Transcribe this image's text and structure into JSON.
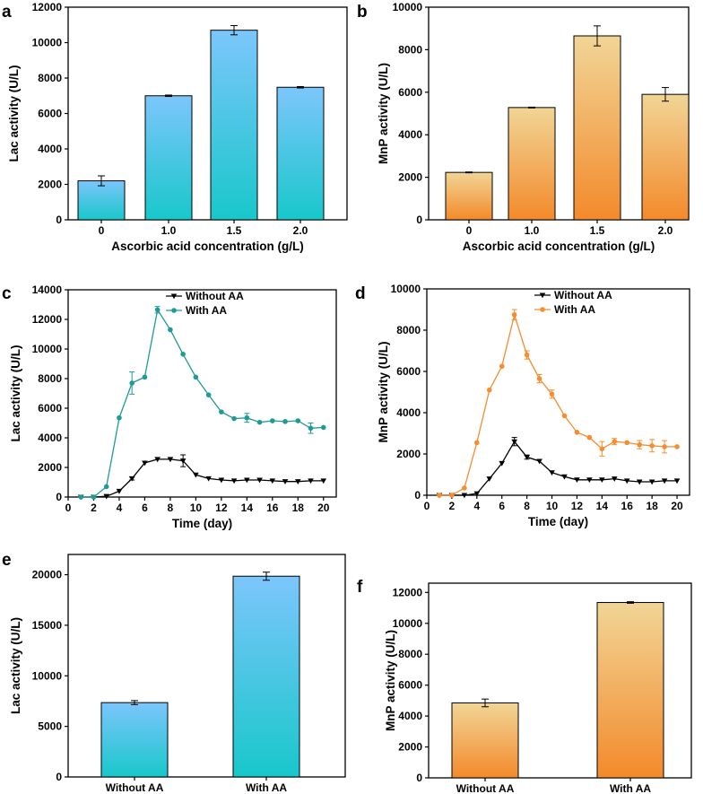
{
  "colors": {
    "blue_top": "#7cc6fb",
    "blue_bottom": "#18c7cb",
    "orange_top": "#f1d596",
    "orange_bottom": "#f38a2b",
    "teal_line": "#1f9a96",
    "orange_line": "#f68d2e",
    "black_line": "#000000"
  },
  "chart_data": [
    {
      "panel": "a",
      "type": "bar",
      "fill": "blue",
      "categories": [
        "0",
        "1.0",
        "1.5",
        "2.0"
      ],
      "values": [
        2200,
        7000,
        10700,
        7480
      ],
      "errors": [
        280,
        40,
        260,
        40
      ],
      "xlabel": "Ascorbic acid concentration (g/L)",
      "ylabel": "Lac activity (U/L)",
      "ylim": [
        0,
        12000
      ],
      "yticks": [
        0,
        2000,
        4000,
        6000,
        8000,
        10000,
        12000
      ]
    },
    {
      "panel": "b",
      "type": "bar",
      "fill": "orange",
      "categories": [
        "0",
        "1.0",
        "1.5",
        "2.0"
      ],
      "values": [
        2230,
        5280,
        8650,
        5900
      ],
      "errors": [
        20,
        20,
        470,
        320
      ],
      "xlabel": "Ascorbic acid concentration (g/L)",
      "ylabel": "MnP activity (U/L)",
      "ylim": [
        0,
        10000
      ],
      "yticks": [
        0,
        2000,
        4000,
        6000,
        8000,
        10000
      ]
    },
    {
      "panel": "c",
      "type": "line",
      "x": [
        1,
        2,
        3,
        4,
        5,
        6,
        7,
        8,
        9,
        10,
        11,
        12,
        13,
        14,
        15,
        16,
        17,
        18,
        19,
        20
      ],
      "series": [
        {
          "name": "Without AA",
          "color": "black",
          "marker": "triangle-down",
          "values": [
            0,
            0,
            50,
            400,
            1250,
            2300,
            2550,
            2550,
            2450,
            1500,
            1250,
            1150,
            1100,
            1150,
            1150,
            1100,
            1050,
            1050,
            1100,
            1100
          ],
          "errors": [
            0,
            0,
            0,
            0,
            100,
            0,
            0,
            0,
            400,
            0,
            0,
            0,
            0,
            0,
            0,
            0,
            0,
            0,
            0,
            0
          ]
        },
        {
          "name": "With AA",
          "color": "teal",
          "marker": "circle",
          "values": [
            0,
            0,
            700,
            5350,
            7700,
            8100,
            12650,
            11300,
            9650,
            8100,
            6900,
            5750,
            5300,
            5350,
            5050,
            5150,
            5100,
            5150,
            4650,
            4700
          ],
          "errors": [
            0,
            0,
            0,
            0,
            750,
            0,
            220,
            0,
            0,
            0,
            0,
            0,
            0,
            300,
            0,
            0,
            0,
            0,
            350,
            0
          ]
        }
      ],
      "xlabel": "Time (day)",
      "ylabel": "Lac activity (U/L)",
      "xlim": [
        0,
        21
      ],
      "xticks": [
        0,
        2,
        4,
        6,
        8,
        10,
        12,
        14,
        16,
        18,
        20
      ],
      "ylim": [
        0,
        14000
      ],
      "yticks": [
        0,
        2000,
        4000,
        6000,
        8000,
        10000,
        12000,
        14000
      ],
      "legend_position": "top-center"
    },
    {
      "panel": "d",
      "type": "line",
      "x": [
        1,
        2,
        3,
        4,
        5,
        6,
        7,
        8,
        9,
        10,
        11,
        12,
        13,
        14,
        15,
        16,
        17,
        18,
        19,
        20
      ],
      "series": [
        {
          "name": "Without AA",
          "color": "black",
          "marker": "triangle-down",
          "values": [
            0,
            0,
            0,
            80,
            800,
            1550,
            2600,
            1850,
            1650,
            1100,
            900,
            750,
            750,
            750,
            800,
            700,
            650,
            650,
            700,
            700
          ],
          "errors": [
            0,
            0,
            0,
            0,
            0,
            0,
            200,
            100,
            0,
            0,
            0,
            0,
            0,
            0,
            0,
            0,
            0,
            0,
            0,
            0
          ]
        },
        {
          "name": "With AA",
          "color": "orange",
          "marker": "circle",
          "values": [
            0,
            0,
            350,
            2550,
            5100,
            6250,
            8750,
            6800,
            5650,
            4900,
            3850,
            3050,
            2800,
            2250,
            2600,
            2550,
            2450,
            2400,
            2350,
            2350
          ],
          "errors": [
            0,
            0,
            0,
            0,
            0,
            0,
            250,
            200,
            200,
            200,
            0,
            0,
            0,
            350,
            150,
            0,
            200,
            300,
            300,
            0
          ]
        }
      ],
      "xlabel": "Time (day)",
      "ylabel": "MnP activity (U/L)",
      "xlim": [
        0,
        21
      ],
      "xticks": [
        0,
        2,
        4,
        6,
        8,
        10,
        12,
        14,
        16,
        18,
        20
      ],
      "ylim": [
        0,
        10000
      ],
      "yticks": [
        0,
        2000,
        4000,
        6000,
        8000,
        10000
      ],
      "legend_position": "top-center"
    },
    {
      "panel": "e",
      "type": "bar",
      "fill": "blue",
      "categories": [
        "Without AA",
        "With AA"
      ],
      "values": [
        7350,
        19850
      ],
      "errors": [
        200,
        400
      ],
      "xlabel": "",
      "ylabel": "Lac activity (U/L)",
      "ylim": [
        0,
        22000
      ],
      "yticks": [
        0,
        5000,
        10000,
        15000,
        20000
      ]
    },
    {
      "panel": "f",
      "type": "bar",
      "fill": "orange",
      "categories": [
        "Without AA",
        "With AA"
      ],
      "values": [
        4850,
        11350
      ],
      "errors": [
        250,
        50
      ],
      "xlabel": "",
      "ylabel": "MnP activity (U/L)",
      "ylim": [
        0,
        12600
      ],
      "yticks": [
        0,
        2000,
        4000,
        6000,
        8000,
        10000,
        12000
      ]
    }
  ]
}
